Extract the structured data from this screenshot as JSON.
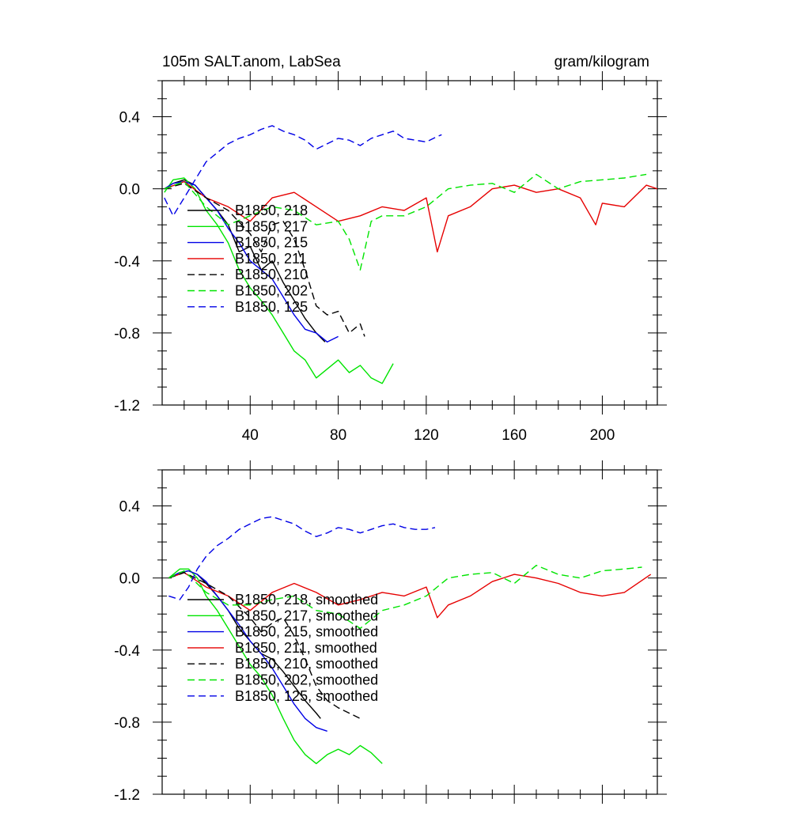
{
  "colors": {
    "black": "#000000",
    "green": "#00e400",
    "blue": "#0000e6",
    "red": "#e60000",
    "axis": "#000000",
    "background": "#ffffff"
  },
  "chart_data": [
    {
      "type": "line",
      "title": "105m SALT.anom, LabSea",
      "units": "gram/kilogram",
      "xlabel": "",
      "ylabel": "",
      "xlim": [
        0,
        225
      ],
      "ylim": [
        -1.2,
        0.6
      ],
      "x_ticks": [
        40,
        80,
        120,
        160,
        200
      ],
      "x_tick_labels": [
        "40",
        "80",
        "120",
        "160",
        "200"
      ],
      "y_ticks": [
        0.4,
        0.0,
        -0.4,
        -0.8,
        -1.2
      ],
      "y_tick_labels": [
        "0.4",
        "0.0",
        "-0.4",
        "-0.8",
        "-1.2"
      ],
      "legend_position": "lower-left",
      "series": [
        {
          "name": "B1850, 218",
          "color": "black",
          "dash": "solid",
          "x": [
            1,
            5,
            10,
            15,
            20,
            25,
            30,
            35,
            40,
            45,
            50,
            55,
            60,
            65,
            70,
            74
          ],
          "values": [
            0.0,
            0.03,
            0.05,
            0.02,
            -0.05,
            -0.12,
            -0.2,
            -0.35,
            -0.32,
            -0.45,
            -0.4,
            -0.52,
            -0.62,
            -0.72,
            -0.8,
            -0.85
          ]
        },
        {
          "name": "B1850, 217",
          "color": "green",
          "dash": "solid",
          "x": [
            1,
            5,
            10,
            15,
            20,
            25,
            30,
            35,
            40,
            45,
            50,
            55,
            60,
            65,
            70,
            75,
            80,
            85,
            90,
            95,
            100,
            105
          ],
          "values": [
            -0.02,
            0.05,
            0.06,
            0.0,
            -0.12,
            -0.2,
            -0.3,
            -0.45,
            -0.55,
            -0.62,
            -0.7,
            -0.8,
            -0.9,
            -0.95,
            -1.05,
            -1.0,
            -0.95,
            -1.02,
            -0.98,
            -1.05,
            -1.08,
            -0.97
          ]
        },
        {
          "name": "B1850, 215",
          "color": "blue",
          "dash": "solid",
          "x": [
            1,
            5,
            10,
            15,
            20,
            25,
            30,
            35,
            40,
            45,
            50,
            55,
            60,
            65,
            70,
            75,
            80
          ],
          "values": [
            0.0,
            0.03,
            0.04,
            0.02,
            -0.05,
            -0.12,
            -0.22,
            -0.3,
            -0.4,
            -0.45,
            -0.5,
            -0.6,
            -0.7,
            -0.78,
            -0.8,
            -0.85,
            -0.82
          ]
        },
        {
          "name": "B1850, 211",
          "color": "red",
          "dash": "solid",
          "x": [
            1,
            10,
            20,
            30,
            40,
            50,
            60,
            70,
            80,
            90,
            100,
            110,
            120,
            125,
            130,
            140,
            150,
            160,
            170,
            180,
            190,
            197,
            200,
            210,
            220,
            225
          ],
          "values": [
            0.0,
            0.04,
            -0.05,
            -0.1,
            -0.18,
            -0.05,
            -0.02,
            -0.1,
            -0.18,
            -0.15,
            -0.1,
            -0.12,
            -0.05,
            -0.35,
            -0.15,
            -0.1,
            0.0,
            0.02,
            -0.02,
            0.0,
            -0.05,
            -0.2,
            -0.08,
            -0.1,
            0.02,
            0.0
          ]
        },
        {
          "name": "B1850, 210",
          "color": "black",
          "dash": "dashed",
          "x": [
            1,
            10,
            20,
            30,
            40,
            45,
            50,
            55,
            60,
            65,
            70,
            75,
            80,
            85,
            90,
            92
          ],
          "values": [
            0.0,
            0.03,
            -0.05,
            -0.12,
            -0.25,
            -0.35,
            -0.2,
            -0.18,
            -0.28,
            -0.45,
            -0.65,
            -0.7,
            -0.68,
            -0.8,
            -0.75,
            -0.82
          ]
        },
        {
          "name": "B1850, 202",
          "color": "green",
          "dash": "dashed",
          "x": [
            1,
            10,
            20,
            30,
            40,
            50,
            60,
            70,
            80,
            85,
            90,
            95,
            100,
            110,
            120,
            130,
            140,
            150,
            160,
            170,
            180,
            190,
            200,
            210,
            220
          ],
          "values": [
            0.0,
            0.04,
            -0.1,
            -0.2,
            -0.15,
            -0.1,
            -0.12,
            -0.2,
            -0.18,
            -0.28,
            -0.45,
            -0.18,
            -0.15,
            -0.15,
            -0.1,
            0.0,
            0.02,
            0.03,
            -0.02,
            0.08,
            0.0,
            0.04,
            0.05,
            0.06,
            0.08
          ]
        },
        {
          "name": "B1850, 125",
          "color": "blue",
          "dash": "dashed",
          "x": [
            1,
            5,
            10,
            15,
            20,
            25,
            30,
            35,
            40,
            45,
            50,
            55,
            60,
            65,
            70,
            75,
            80,
            85,
            90,
            95,
            100,
            105,
            110,
            115,
            120,
            125,
            127
          ],
          "values": [
            -0.05,
            -0.15,
            -0.05,
            0.05,
            0.15,
            0.2,
            0.25,
            0.28,
            0.3,
            0.33,
            0.35,
            0.32,
            0.3,
            0.27,
            0.22,
            0.25,
            0.28,
            0.27,
            0.24,
            0.28,
            0.3,
            0.32,
            0.28,
            0.27,
            0.26,
            0.29,
            0.3
          ]
        }
      ]
    },
    {
      "type": "line",
      "title": "",
      "xlabel": "",
      "ylabel": "",
      "xlim": [
        0,
        225
      ],
      "ylim": [
        -1.2,
        0.6
      ],
      "x_ticks": [
        40,
        80,
        120,
        160,
        200
      ],
      "x_tick_labels": [],
      "y_ticks": [
        0.4,
        0.0,
        -0.4,
        -0.8,
        -1.2
      ],
      "y_tick_labels": [
        "0.4",
        "0.0",
        "-0.4",
        "-0.8",
        "-1.2"
      ],
      "legend_position": "lower-left",
      "series": [
        {
          "name": "B1850, 218, smoothed",
          "color": "black",
          "dash": "solid",
          "x": [
            3,
            8,
            12,
            16,
            20,
            25,
            30,
            35,
            40,
            45,
            50,
            55,
            60,
            65,
            70,
            72
          ],
          "values": [
            0.0,
            0.03,
            0.04,
            0.02,
            -0.03,
            -0.1,
            -0.18,
            -0.28,
            -0.35,
            -0.42,
            -0.45,
            -0.52,
            -0.6,
            -0.68,
            -0.75,
            -0.78
          ]
        },
        {
          "name": "B1850, 217, smoothed",
          "color": "green",
          "dash": "solid",
          "x": [
            3,
            8,
            12,
            16,
            20,
            25,
            30,
            35,
            40,
            45,
            50,
            55,
            60,
            65,
            70,
            75,
            80,
            85,
            90,
            95,
            100
          ],
          "values": [
            0.0,
            0.05,
            0.05,
            0.0,
            -0.1,
            -0.18,
            -0.28,
            -0.38,
            -0.48,
            -0.55,
            -0.65,
            -0.78,
            -0.9,
            -0.98,
            -1.03,
            -0.98,
            -0.95,
            -0.98,
            -0.93,
            -0.97,
            -1.03
          ]
        },
        {
          "name": "B1850, 215, smoothed",
          "color": "blue",
          "dash": "solid",
          "x": [
            3,
            8,
            12,
            16,
            20,
            25,
            30,
            35,
            40,
            45,
            50,
            55,
            60,
            65,
            70,
            75
          ],
          "values": [
            0.0,
            0.03,
            0.04,
            0.02,
            -0.02,
            -0.1,
            -0.18,
            -0.26,
            -0.35,
            -0.42,
            -0.5,
            -0.6,
            -0.7,
            -0.78,
            -0.83,
            -0.85
          ]
        },
        {
          "name": "B1850, 211, smoothed",
          "color": "red",
          "dash": "solid",
          "x": [
            3,
            10,
            20,
            30,
            40,
            50,
            60,
            70,
            80,
            90,
            100,
            110,
            120,
            125,
            130,
            140,
            150,
            160,
            170,
            180,
            190,
            200,
            210,
            222
          ],
          "values": [
            0.0,
            0.03,
            -0.05,
            -0.1,
            -0.18,
            -0.08,
            -0.03,
            -0.08,
            -0.15,
            -0.12,
            -0.08,
            -0.1,
            -0.05,
            -0.22,
            -0.15,
            -0.1,
            -0.02,
            0.02,
            0.0,
            -0.03,
            -0.08,
            -0.1,
            -0.08,
            0.02
          ]
        },
        {
          "name": "B1850, 210, smoothed",
          "color": "black",
          "dash": "dashed",
          "x": [
            3,
            10,
            20,
            30,
            40,
            45,
            50,
            55,
            60,
            65,
            70,
            75,
            80,
            85,
            90
          ],
          "values": [
            0.0,
            0.03,
            -0.03,
            -0.1,
            -0.22,
            -0.3,
            -0.25,
            -0.22,
            -0.32,
            -0.45,
            -0.6,
            -0.68,
            -0.72,
            -0.75,
            -0.78
          ]
        },
        {
          "name": "B1850, 202, smoothed",
          "color": "green",
          "dash": "dashed",
          "x": [
            3,
            10,
            20,
            30,
            40,
            50,
            60,
            70,
            80,
            90,
            100,
            110,
            120,
            130,
            140,
            150,
            160,
            170,
            180,
            190,
            200,
            210,
            218
          ],
          "values": [
            0.0,
            0.04,
            -0.08,
            -0.15,
            -0.15,
            -0.12,
            -0.1,
            -0.18,
            -0.2,
            -0.28,
            -0.18,
            -0.15,
            -0.1,
            0.0,
            0.02,
            0.03,
            -0.03,
            0.07,
            0.02,
            0.0,
            0.04,
            0.05,
            0.06
          ]
        },
        {
          "name": "B1850, 125, smoothed",
          "color": "blue",
          "dash": "dashed",
          "x": [
            3,
            8,
            12,
            16,
            20,
            25,
            30,
            35,
            40,
            45,
            50,
            55,
            60,
            65,
            70,
            75,
            80,
            85,
            90,
            95,
            100,
            105,
            110,
            115,
            120,
            124
          ],
          "values": [
            -0.1,
            -0.12,
            -0.05,
            0.05,
            0.12,
            0.18,
            0.22,
            0.27,
            0.3,
            0.33,
            0.34,
            0.32,
            0.3,
            0.26,
            0.23,
            0.25,
            0.28,
            0.27,
            0.25,
            0.27,
            0.29,
            0.3,
            0.28,
            0.27,
            0.27,
            0.28
          ]
        }
      ]
    }
  ]
}
